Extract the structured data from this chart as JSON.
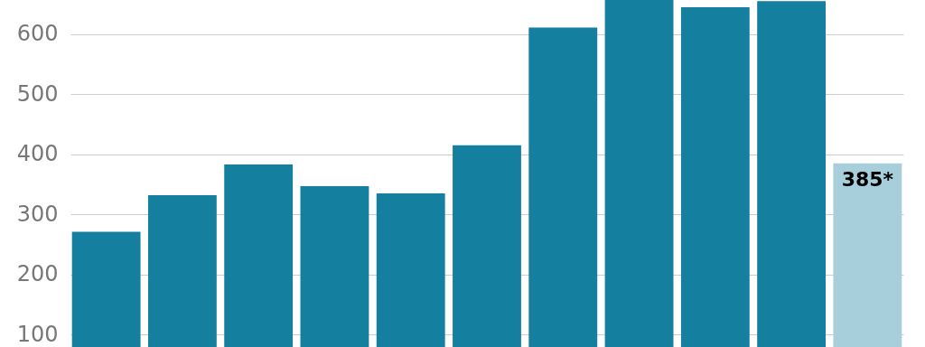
{
  "chart_data": {
    "type": "bar",
    "categories": [
      null,
      null,
      null,
      null,
      null,
      null,
      null,
      null,
      null,
      null,
      null
    ],
    "values": [
      271,
      332,
      383,
      347,
      335,
      415,
      611,
      657,
      645,
      655,
      385
    ],
    "colors": [
      "#157fa0",
      "#157fa0",
      "#157fa0",
      "#157fa0",
      "#157fa0",
      "#157fa0",
      "#157fa0",
      "#157fa0",
      "#157fa0",
      "#157fa0",
      "#a6cfdb"
    ],
    "value_labels": [
      null,
      null,
      null,
      null,
      null,
      null,
      null,
      null,
      null,
      null,
      "385*"
    ],
    "ylim": [
      79,
      657
    ],
    "yticks": [
      100,
      200,
      300,
      400,
      500,
      600
    ],
    "grid": "y",
    "tick_labels": "y"
  }
}
